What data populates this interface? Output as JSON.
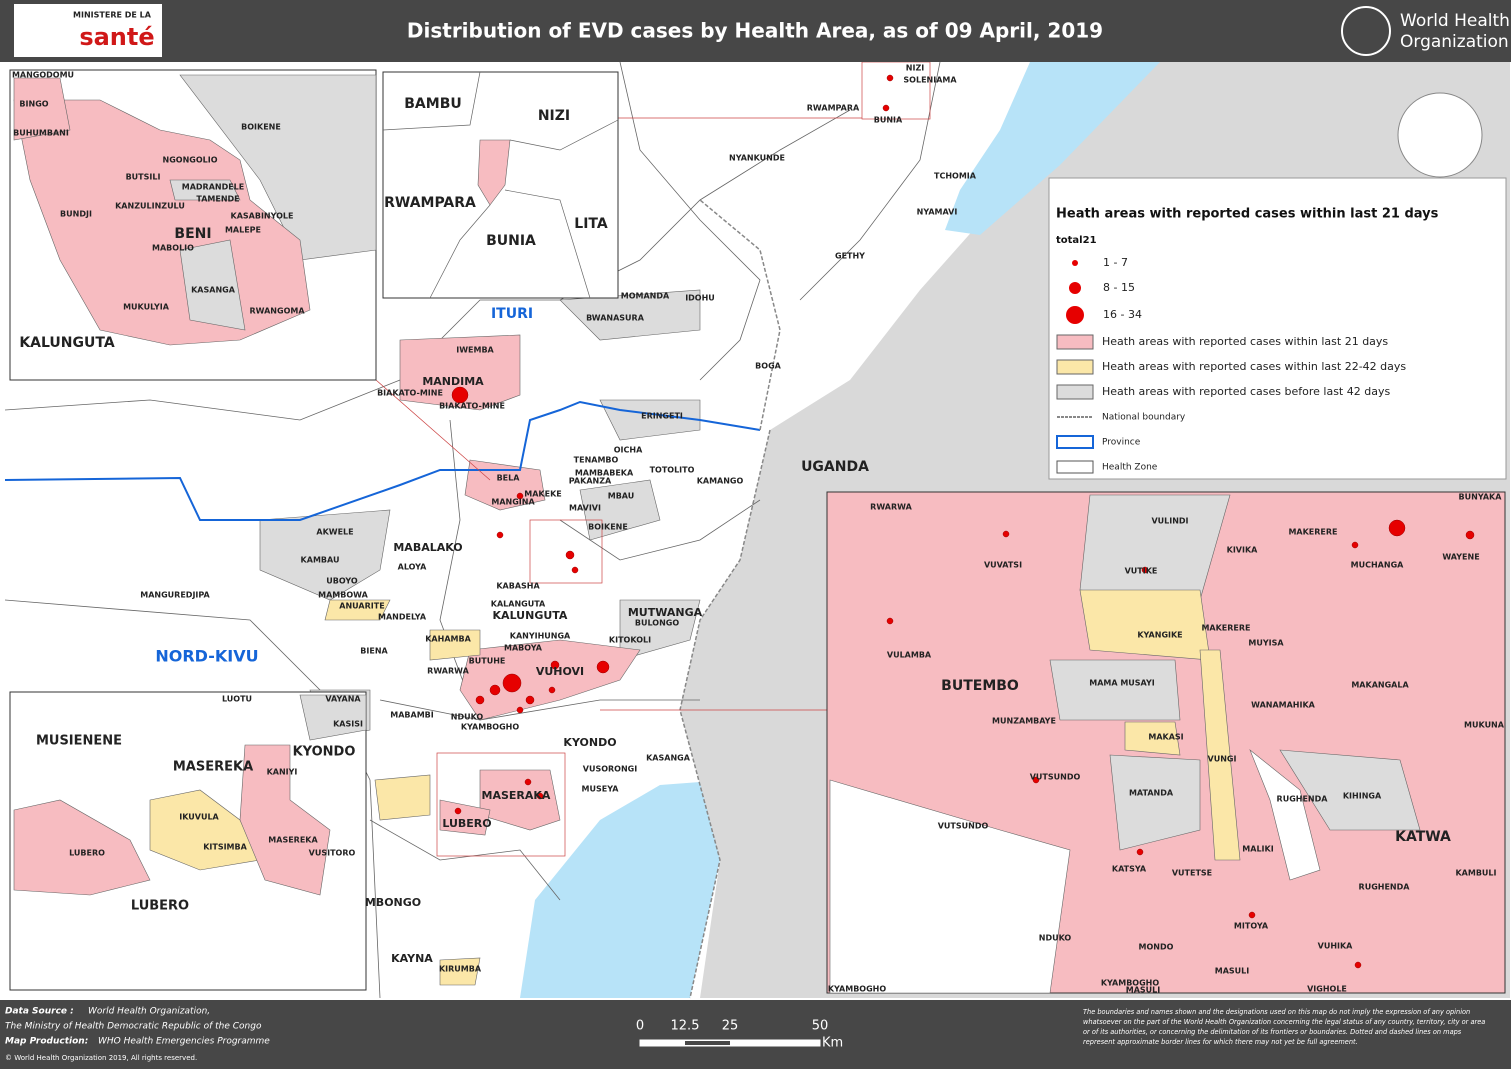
{
  "header": {
    "title": "Distribution of EVD cases by Health Area, as of 09 April, 2019",
    "ministry_top": "MINISTERE DE LA",
    "ministry_name": "santé",
    "who_line1": "World Health",
    "who_line2": "Organization"
  },
  "legend": {
    "title": "Heath areas with reported cases within last 21 days",
    "subtitle": "total21",
    "items": [
      {
        "label": "1 - 7",
        "color": "#e60000"
      },
      {
        "label": "8 - 15",
        "color": "#e60000"
      },
      {
        "label": "16 - 34",
        "color": "#e60000"
      },
      {
        "label": "Heath areas with reported cases within last 21 days",
        "color": "#f7bcc1"
      },
      {
        "label": "Heath areas with reported cases within last 22-42 days",
        "color": "#fbe7a8"
      },
      {
        "label": "Heath areas with reported cases before last 42 days",
        "color": "#dcdcdc"
      },
      {
        "label": "National boundary",
        "color": "#888888"
      },
      {
        "label": "Province",
        "color": "#1565d8"
      },
      {
        "label": "Health Zone",
        "color": "#555555"
      }
    ]
  },
  "map": {
    "labels": [
      "NIZI",
      "SOLENIAMA",
      "RWAMPARA",
      "BUNIA",
      "NYANKUNDE",
      "TCHOMIA",
      "NYAMAVI",
      "GETHY",
      "MANDIMA",
      "BIAKATO-MINE",
      "BIAKATO-MINE",
      "IWEMBA",
      "ITURI",
      "MOMANDA",
      "IDOHU",
      "BWANASURA",
      "BOGA",
      "ERINGETI",
      "OICHA",
      "TENAMBO",
      "MAMBABEKA",
      "PAKANZA",
      "TOTOLITO",
      "KAMANGO",
      "UGANDA",
      "BELA",
      "MAKEKE",
      "MBAU",
      "MANGINA",
      "MAVIVI",
      "AKWELE",
      "BOIKENE",
      "MABALAKO",
      "KAMBAU",
      "ALOYA",
      "UBOYO",
      "MANGUREDJIPA",
      "MAMBOWA",
      "ANUARITE",
      "KABASHA",
      "KALANGUTA",
      "KALUNGUTA",
      "MUTWANGA",
      "BULONGO",
      "MANDELYA",
      "KAHAMBA",
      "KANYIHUNGA",
      "KITOKOLI",
      "NORD-KIVU",
      "BIENA",
      "MABOYA",
      "BUTUHE",
      "VUHOVI",
      "RWARWA",
      "VAYANA",
      "KASISI",
      "MABAMBI",
      "NDUKO",
      "KYONDO",
      "KYAMBOGHO",
      "KASANGA",
      "VUSORONGI",
      "MUSEYA",
      "MASERAKA",
      "LUBERO",
      "MBONGO",
      "KAYNA",
      "KIRUMBA"
    ]
  },
  "insets": {
    "beni": {
      "labels": [
        "MANGODOMU",
        "BINGO",
        "BUHUMBANI",
        "BOIKENE",
        "NGONGOLIO",
        "BUTSILI",
        "MADRANDELE",
        "TAMENDE",
        "KANZULINZULU",
        "KASABINYOLE",
        "BUNDJI",
        "BENI",
        "MALEPE",
        "MABOLIO",
        "KASANGA",
        "RWANGOMA",
        "MUKULYIA",
        "KALUNGUTA"
      ]
    },
    "ituri": {
      "labels": [
        "BAMBU",
        "NIZI",
        "RWAMPARA",
        "LITA",
        "BUNIA"
      ]
    },
    "lubero": {
      "labels": [
        "LUOTU",
        "MUSIENENE",
        "MASEREKA",
        "KYONDO",
        "KANIYI",
        "IKUVULA",
        "KITSIMBA",
        "MASEREKA",
        "VUSITORO",
        "LUBERO",
        "LUBERO"
      ]
    },
    "butembo": {
      "labels": [
        "RWARWA",
        "VULINDI",
        "BUNYAKA",
        "VUVATSI",
        "KIVIKA",
        "MAKERERE",
        "WAYENE",
        "VUTIKE",
        "MUCHANGA",
        "KYANGIKE",
        "MAKERERE",
        "VULAMBA",
        "MUYISA",
        "BUTEMBO",
        "MAMA MUSAYI",
        "MAKANGALA",
        "MUNZAMBAYE",
        "WANAMAHIKA",
        "MUKUNA",
        "MAKASI",
        "VUNGI",
        "VUTSUNDO",
        "MATANDA",
        "RUGHENDA",
        "KIHINGA",
        "VUTSUNDO",
        "KATWA",
        "MALIKI",
        "KATSYA",
        "VUTETSE",
        "KAMBULI",
        "RUGHENDA",
        "NDUKO",
        "MITOYA",
        "MONDO",
        "VUHIKA",
        "MASULI",
        "MASULI",
        "VIGHOLE",
        "KYAMBOGHO",
        "KYAMBOGHO"
      ]
    }
  },
  "footer": {
    "source_label": "Data Source :",
    "source": "World Health Organization,",
    "ministry": "The Ministry of Health Democratic Republic of the Congo",
    "production_label": "Map Production:",
    "production": "WHO Health Emergencies Programme",
    "copyright": "© World Health Organization 2019, All rights reserved.",
    "scale": [
      "0",
      "12.5",
      "25",
      "50"
    ],
    "scale_unit": "Km",
    "disclaimer": "The boundaries and names shown and the designations used on this map do not imply the expression of any opinion whatsoever on the part of the World Health Organization concerning the legal status of any country, territory, city or area or of its authorities, or concerning the delimitation of its frontiers or boundaries. Dotted and dashed lines on maps represent approximate border lines for which there may not yet be full agreement."
  }
}
